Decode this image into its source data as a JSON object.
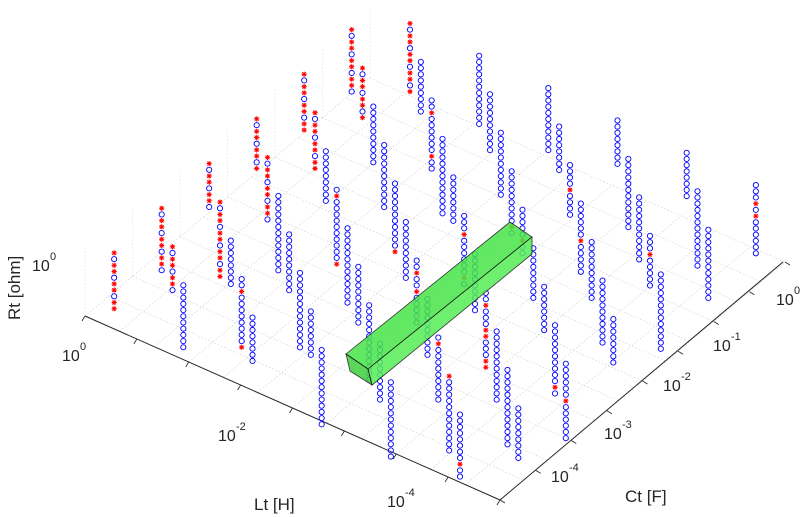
{
  "chart_data": {
    "type": "scatter3d",
    "title": "",
    "axes": {
      "x": {
        "label": "Lt [H]",
        "scale": "log",
        "range": [
          0.0001,
          1
        ],
        "ticks": [
          {
            "base": "10",
            "exp": "0"
          },
          {
            "base": "10",
            "exp": "-2"
          },
          {
            "base": "10",
            "exp": "-4"
          }
        ]
      },
      "y": {
        "label": "Ct [F]",
        "scale": "log",
        "range": [
          0.0001,
          1
        ],
        "ticks": [
          {
            "base": "10",
            "exp": "0"
          },
          {
            "base": "10",
            "exp": "-1"
          },
          {
            "base": "10",
            "exp": "-2"
          },
          {
            "base": "10",
            "exp": "-3"
          },
          {
            "base": "10",
            "exp": "-4"
          }
        ]
      },
      "z": {
        "label": "Rt [ohm]",
        "scale": "log",
        "ticks": [
          {
            "base": "10",
            "exp": "0"
          }
        ]
      }
    },
    "grid": true,
    "series": [
      {
        "marker": "circle",
        "color": "#0000ff"
      },
      {
        "marker": "asterisk",
        "color": "#ff0000"
      }
    ],
    "region_box": {
      "color": "#33dd33"
    }
  }
}
